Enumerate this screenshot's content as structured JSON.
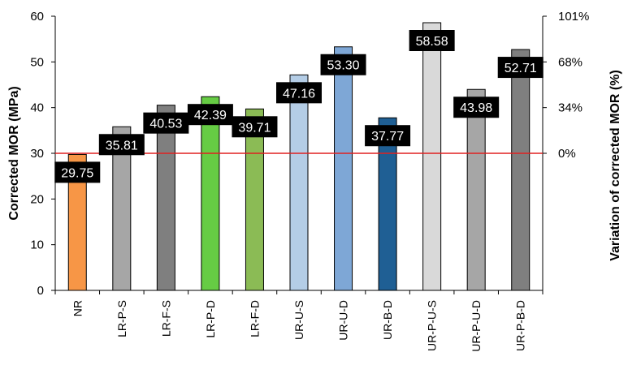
{
  "chart_data": {
    "type": "bar",
    "categories": [
      "NR",
      "LR-P-S",
      "LR-F-S",
      "LR-P-D",
      "LR-F-D",
      "UR-U-S",
      "UR-U-D",
      "UR-B-D",
      "UR-P-U-S",
      "UR-P-U-D",
      "UR-P-B-D"
    ],
    "values": [
      29.75,
      35.81,
      40.53,
      42.39,
      39.71,
      47.16,
      53.3,
      37.77,
      58.58,
      43.98,
      52.71
    ],
    "value_labels": [
      "29.75",
      "35.81",
      "40.53",
      "42.39",
      "39.71",
      "47.16",
      "53.30",
      "37.77",
      "58.58",
      "43.98",
      "52.71"
    ],
    "colors": [
      "#f79646",
      "#a6a6a6",
      "#7f7f7f",
      "#66cc44",
      "#8bbb55",
      "#b4cde6",
      "#7ea7d6",
      "#1f5f94",
      "#d9d9d9",
      "#a6a6a6",
      "#7f7f7f"
    ],
    "ylabel": "Corrected MOR (MPa)",
    "y2label": "Variation of corrected MOR (%)",
    "ylim": [
      0,
      60
    ],
    "yticks": [
      "0",
      "10",
      "20",
      "30",
      "40",
      "50",
      "60"
    ],
    "y2ticks": [
      {
        "label": "0%",
        "at": 30
      },
      {
        "label": "34%",
        "at": 40
      },
      {
        "label": "68%",
        "at": 50
      },
      {
        "label": "101%",
        "at": 60
      }
    ],
    "reference_line": {
      "value": 30,
      "color": "#e02020"
    },
    "grid": false,
    "legend": "none"
  }
}
